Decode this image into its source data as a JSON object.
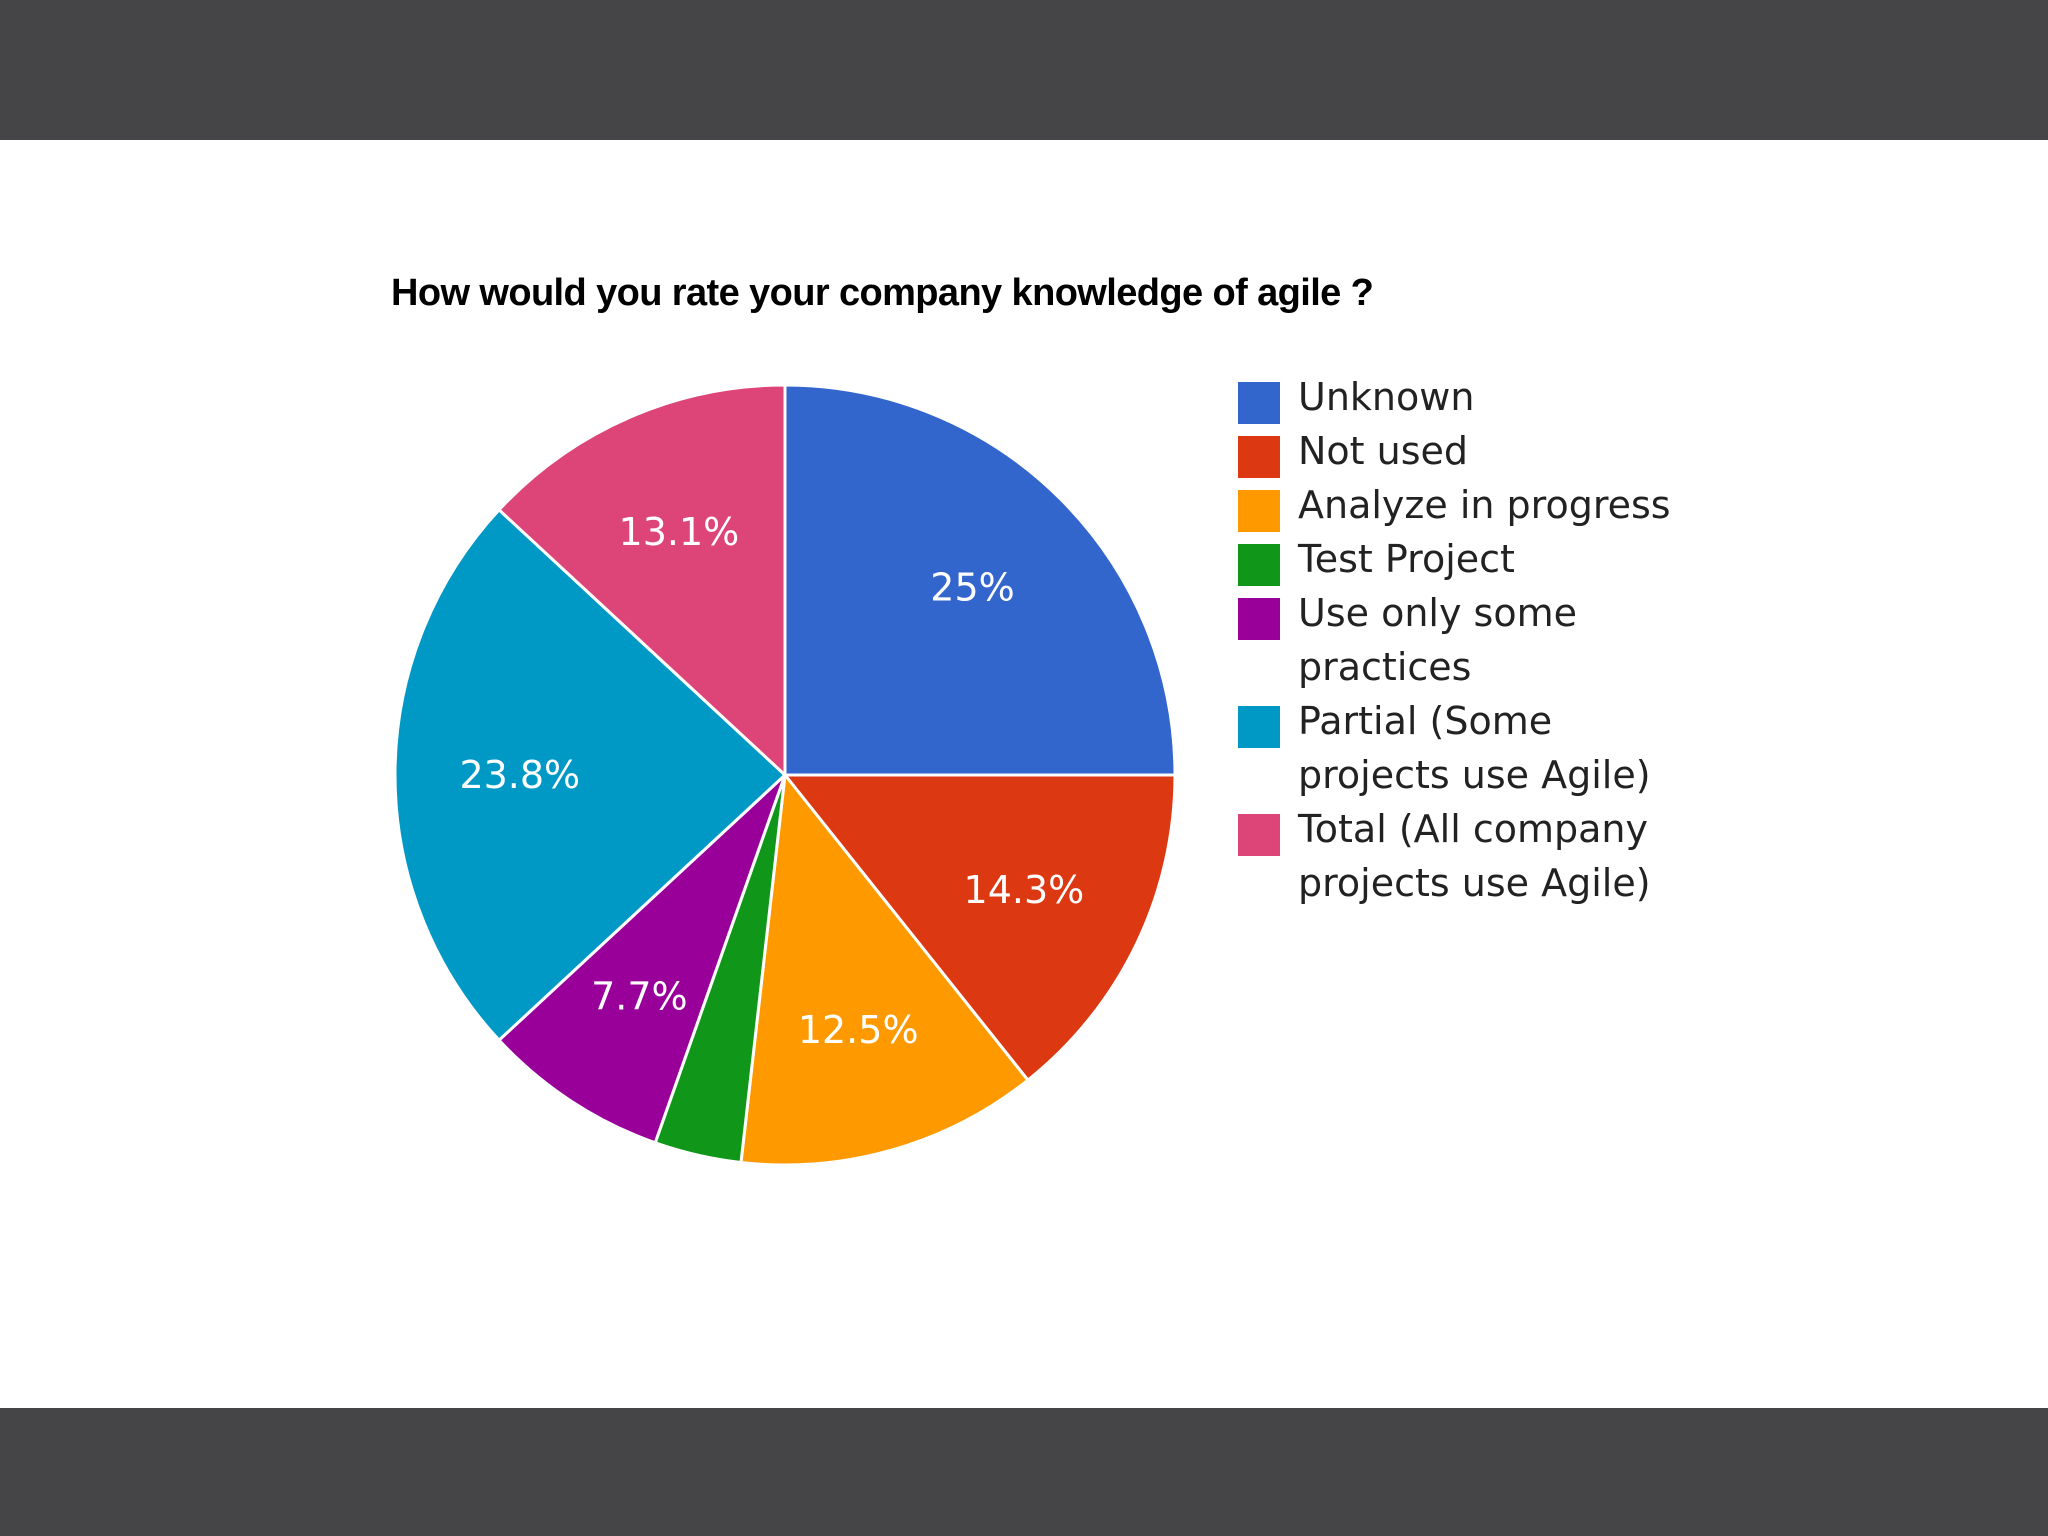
{
  "chart_data": {
    "type": "pie",
    "title": "How would you rate your company knowledge of agile ?",
    "slices": [
      {
        "label": "Unknown",
        "value": 25.0,
        "display": "25%",
        "color": "#3366cc"
      },
      {
        "label": "Not used",
        "value": 14.3,
        "display": "14.3%",
        "color": "#dc3912"
      },
      {
        "label": "Analyze in progress",
        "value": 12.5,
        "display": "12.5%",
        "color": "#ff9900"
      },
      {
        "label": "Test Project",
        "value": 3.6,
        "display": "",
        "color": "#109618"
      },
      {
        "label": "Use only some practices",
        "value": 7.7,
        "display": "7.7%",
        "color": "#990099"
      },
      {
        "label": "Partial (Some projects use Agile)",
        "value": 23.8,
        "display": "23.8%",
        "color": "#0099c6"
      },
      {
        "label": "Total (All company projects use Agile)",
        "value": 13.1,
        "display": "13.1%",
        "color": "#dd4477"
      }
    ],
    "legend_position": "right"
  },
  "theme": {
    "frame_color": "#454547",
    "background": "#ffffff",
    "slice_label_color": "#ffffff",
    "slice_border_color": "#ffffff"
  }
}
